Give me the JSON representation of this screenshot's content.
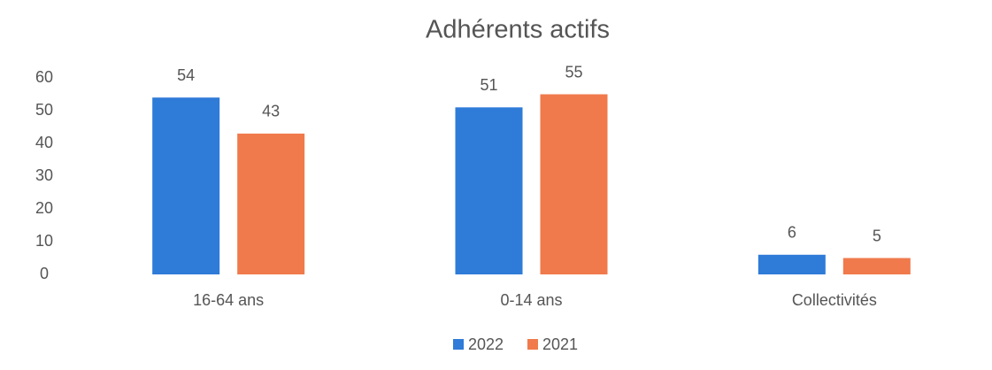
{
  "chart_data": {
    "type": "bar",
    "title": "Adhérents actifs",
    "categories": [
      "16-64 ans",
      "0-14 ans",
      "Collectivités"
    ],
    "series": [
      {
        "name": "2022",
        "color": "#2f7bd8",
        "values": [
          54,
          51,
          6
        ]
      },
      {
        "name": "2021",
        "color": "#f07a4c",
        "values": [
          43,
          55,
          5
        ]
      }
    ],
    "ylim": [
      0,
      60
    ],
    "yticks": [
      0,
      10,
      20,
      30,
      40,
      50,
      60
    ],
    "grid": false,
    "legend": "bottom"
  }
}
